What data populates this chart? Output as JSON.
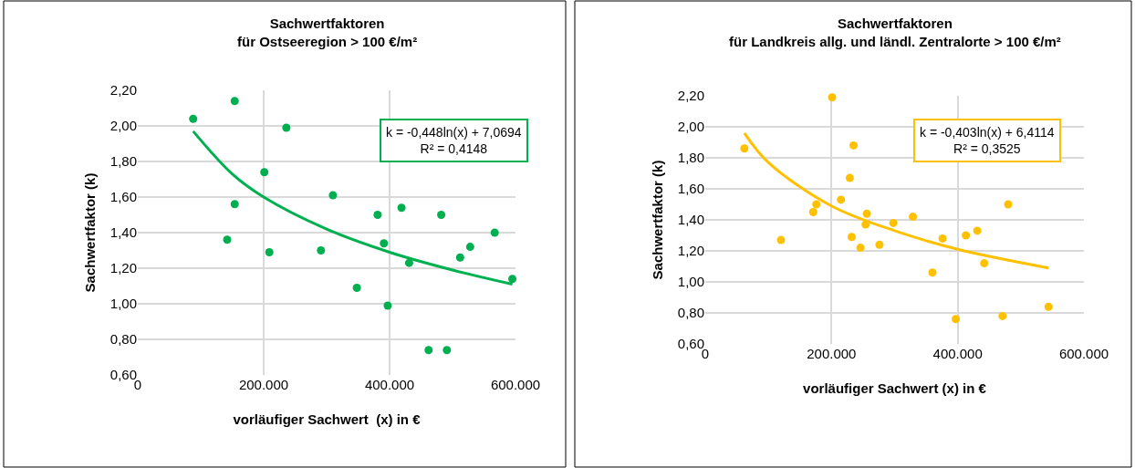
{
  "chart_data": [
    {
      "type": "scatter",
      "title": "Sachwertfaktoren\nfür Ostseeregion > 100 €/m²",
      "xlabel": "vorläufiger Sachwert  (x) in €",
      "ylabel": "Sachwertfaktor (k)",
      "annotations": [
        "k = -0,448ln(x) + 7,0694\nR² = 0,4148"
      ],
      "series": [
        {
          "color": "#00b050",
          "marker": "circle",
          "x": [
            88000,
            154000,
            236000,
            201000,
            154000,
            142000,
            209000,
            310000,
            291000,
            381000,
            419000,
            391000,
            431000,
            348000,
            397000,
            482000,
            567000,
            528000,
            512000,
            595000,
            462000,
            491000
          ],
          "values": [
            2.04,
            2.14,
            1.99,
            1.74,
            1.56,
            1.36,
            1.29,
            1.61,
            1.3,
            1.5,
            1.54,
            1.34,
            1.23,
            1.09,
            0.99,
            1.5,
            1.4,
            1.32,
            1.26,
            1.14,
            0.74,
            0.74
          ]
        },
        {
          "type": "line",
          "color": "#00b050",
          "marker": "none",
          "x": [
            88000,
            150000,
            200000,
            300000,
            400000,
            500000,
            595000
          ],
          "values": [
            1.97,
            1.73,
            1.6,
            1.42,
            1.29,
            1.19,
            1.11
          ]
        }
      ],
      "xlim": [
        0,
        600000
      ],
      "xticks": [
        0,
        {
          "value": 200000,
          "label": "200.000"
        },
        {
          "value": 400000,
          "label": "400.000"
        },
        {
          "value": 600000,
          "label": "600.000"
        }
      ],
      "ylim": [
        0.6,
        2.2
      ],
      "yticks": [
        {
          "value": 0.6,
          "label": "0,60"
        },
        {
          "value": 0.8,
          "label": "0,80"
        },
        {
          "value": 1.0,
          "label": "1,00"
        },
        {
          "value": 1.2,
          "label": "1,20"
        },
        {
          "value": 1.4,
          "label": "1,40"
        },
        {
          "value": 1.6,
          "label": "1,60"
        },
        {
          "value": 1.8,
          "label": "1,80"
        },
        {
          "value": 2.0,
          "label": "2,00"
        },
        {
          "value": 2.2,
          "label": "2,20"
        }
      ],
      "grid": true
    },
    {
      "type": "scatter",
      "title": "Sachwertfaktoren\nfür Landkreis allg. und ländl. Zentralorte > 100 €/m²",
      "xlabel": "vorläufiger Sachwert (x) in €",
      "ylabel": "Sachwertfaktor (k)",
      "annotations": [
        "k = -0,403ln(x) + 6,4114\nR² = 0,3525"
      ],
      "series": [
        {
          "color": "#ffc000",
          "marker": "circle",
          "x": [
            201000,
            62000,
            235000,
            229000,
            215000,
            176000,
            171000,
            256000,
            254000,
            298000,
            329000,
            120000,
            232000,
            246000,
            276000,
            376000,
            413000,
            431000,
            480000,
            442000,
            360000,
            397000,
            471000,
            544000
          ],
          "values": [
            2.19,
            1.86,
            1.88,
            1.67,
            1.53,
            1.5,
            1.45,
            1.44,
            1.37,
            1.38,
            1.42,
            1.27,
            1.29,
            1.22,
            1.24,
            1.28,
            1.3,
            1.33,
            1.5,
            1.12,
            1.06,
            0.76,
            0.78,
            0.84
          ]
        },
        {
          "type": "line",
          "color": "#ffc000",
          "marker": "none",
          "x": [
            62000,
            100000,
            200000,
            300000,
            400000,
            544000
          ],
          "values": [
            1.96,
            1.77,
            1.49,
            1.33,
            1.21,
            1.09
          ]
        }
      ],
      "xlim": [
        0,
        600000
      ],
      "xticks": [
        0,
        {
          "value": 200000,
          "label": "200.000"
        },
        {
          "value": 400000,
          "label": "400.000"
        },
        {
          "value": 600000,
          "label": "600.000"
        }
      ],
      "ylim": [
        0.6,
        2.2
      ],
      "yticks": [
        {
          "value": 0.6,
          "label": "0,60"
        },
        {
          "value": 0.8,
          "label": "0,80"
        },
        {
          "value": 1.0,
          "label": "1,00"
        },
        {
          "value": 1.2,
          "label": "1,20"
        },
        {
          "value": 1.4,
          "label": "1,40"
        },
        {
          "value": 1.6,
          "label": "1,60"
        },
        {
          "value": 1.8,
          "label": "1,80"
        },
        {
          "value": 2.0,
          "label": "2,00"
        },
        {
          "value": 2.2,
          "label": "2,20"
        }
      ],
      "grid": true
    }
  ]
}
